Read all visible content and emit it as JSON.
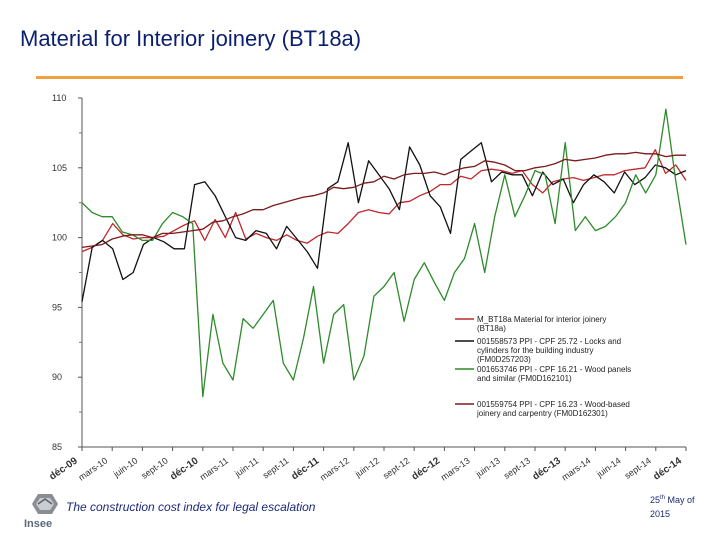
{
  "slide": {
    "title": "Material for Interior joinery (BT18a)",
    "footer": "The construction cost index for legal escalation",
    "date_day": "25",
    "date_suffix": "th",
    "date_rest": " May of 2015",
    "logo_text": "Insee"
  },
  "colors": {
    "title": "#0b1f6e",
    "accent": "#f0a040",
    "red": "#c0282c",
    "black": "#111111",
    "green": "#2e8a2a"
  },
  "chart_data": {
    "type": "line",
    "title": "Material for Interior joinery (BT18a)",
    "ylim": [
      85,
      110
    ],
    "yticks": [
      85,
      90,
      95,
      100,
      105,
      110
    ],
    "xlabels": [
      "déc-09",
      "mars-10",
      "juin-10",
      "sept-10",
      "déc-10",
      "mars-11",
      "juin-11",
      "sept-11",
      "déc-11",
      "mars-12",
      "juin-12",
      "sept-12",
      "déc-12",
      "mars-13",
      "juin-13",
      "sept-13",
      "déc-13",
      "mars-14",
      "juin-14",
      "sept-14",
      "déc-14"
    ],
    "xlabels_bold": [
      0,
      4,
      8,
      12,
      16,
      20
    ],
    "legend": [
      {
        "text": "M_BT18a Material for interior joinery (BT18a)",
        "color": "#c0282c"
      },
      {
        "text": "001558573 PPI - CPF 25.72 - Locks and cylinders for the building industry (FM0D257203)",
        "color": "#111111"
      },
      {
        "text": "001653746 PPI - CPF 16.21 - Wood panels and similar (FM0D162101)",
        "color": "#2e8a2a"
      },
      {
        "text": "001559754 PPI - CPF 16.23 - Wood-based joinery and carpentry (FM0D162301)",
        "color": "#7a1a1a"
      }
    ],
    "series": [
      {
        "name": "M_BT18a Material for interior joinery (BT18a)",
        "color": "#c0282c",
        "values": [
          99.0,
          99.3,
          99.8,
          101.0,
          100.2,
          99.9,
          100.0,
          100.0,
          100.1,
          100.5,
          100.9,
          101.2,
          99.8,
          101.3,
          100.0,
          101.8,
          99.9,
          100.3,
          100.0,
          99.8,
          100.2,
          99.8,
          99.6,
          100.1,
          100.4,
          100.3,
          101.0,
          101.8,
          102.0,
          101.8,
          101.7,
          102.5,
          102.6,
          103.0,
          103.3,
          103.8,
          103.8,
          104.4,
          104.2,
          104.8,
          104.9,
          104.8,
          104.6,
          104.8,
          103.8,
          103.2,
          104.0,
          104.2,
          104.3,
          104.1,
          104.3,
          104.5,
          104.5,
          104.8,
          104.9,
          105.0,
          106.3,
          104.6,
          105.2,
          104.1
        ]
      },
      {
        "name": "001558573 PPI - CPF 25.72 - Locks and cylinders for the building industry (FM0D257203)",
        "color": "#111111",
        "values": [
          95.4,
          99.3,
          99.8,
          99.2,
          97.0,
          97.5,
          99.5,
          100.0,
          99.7,
          99.2,
          99.2,
          103.8,
          104.0,
          103.0,
          101.5,
          100.0,
          99.8,
          100.5,
          100.3,
          99.2,
          100.8,
          99.9,
          99.0,
          97.8,
          103.5,
          104.0,
          106.8,
          102.5,
          105.5,
          104.5,
          103.5,
          102.0,
          106.5,
          105.2,
          103.0,
          102.2,
          100.3,
          105.6,
          106.2,
          106.8,
          104.0,
          104.7,
          104.5,
          104.5,
          103.0,
          104.7,
          103.8,
          104.2,
          102.5,
          103.8,
          104.5,
          104.0,
          103.2,
          104.7,
          103.8,
          104.3,
          105.2,
          105.0,
          104.5,
          104.8
        ]
      },
      {
        "name": "001653746 PPI - CPF 16.21 - Wood panels and similar (FM0D162101)",
        "color": "#2e8a2a",
        "values": [
          102.5,
          101.8,
          101.5,
          101.5,
          100.4,
          100.2,
          99.8,
          99.8,
          101.0,
          101.8,
          101.5,
          101.0,
          88.6,
          94.5,
          91.0,
          89.8,
          94.2,
          93.5,
          94.5,
          95.5,
          91.0,
          89.8,
          92.8,
          96.5,
          91.0,
          94.5,
          95.2,
          89.8,
          91.5,
          95.8,
          96.5,
          97.5,
          94.0,
          97.0,
          98.2,
          96.8,
          95.5,
          97.5,
          98.5,
          101.0,
          97.5,
          101.5,
          104.5,
          101.5,
          103.0,
          104.8,
          104.5,
          101.0,
          106.8,
          100.5,
          101.5,
          100.5,
          100.8,
          101.5,
          102.5,
          104.5,
          103.2,
          104.5,
          109.2,
          104.0,
          99.5
        ]
      },
      {
        "name": "001559754 PPI - CPF 16.23 - Wood-based joinery and carpentry (FM0D162301)",
        "color": "#7a1a1a",
        "values": [
          99.3,
          99.4,
          99.5,
          99.9,
          100.1,
          100.2,
          100.2,
          100.0,
          100.3,
          100.3,
          100.4,
          100.5,
          100.6,
          101.1,
          101.2,
          101.5,
          101.7,
          102.0,
          102.0,
          102.3,
          102.5,
          102.7,
          102.9,
          103.0,
          103.2,
          103.6,
          103.5,
          103.6,
          103.9,
          104.0,
          104.4,
          104.2,
          104.5,
          104.6,
          104.6,
          104.7,
          104.5,
          104.8,
          105.0,
          105.1,
          105.5,
          105.4,
          105.2,
          104.8,
          104.8,
          105.0,
          105.1,
          105.3,
          105.6,
          105.5,
          105.6,
          105.7,
          105.9,
          106.0,
          106.0,
          106.1,
          106.0,
          106.0,
          105.8,
          105.9,
          105.9
        ]
      }
    ]
  }
}
